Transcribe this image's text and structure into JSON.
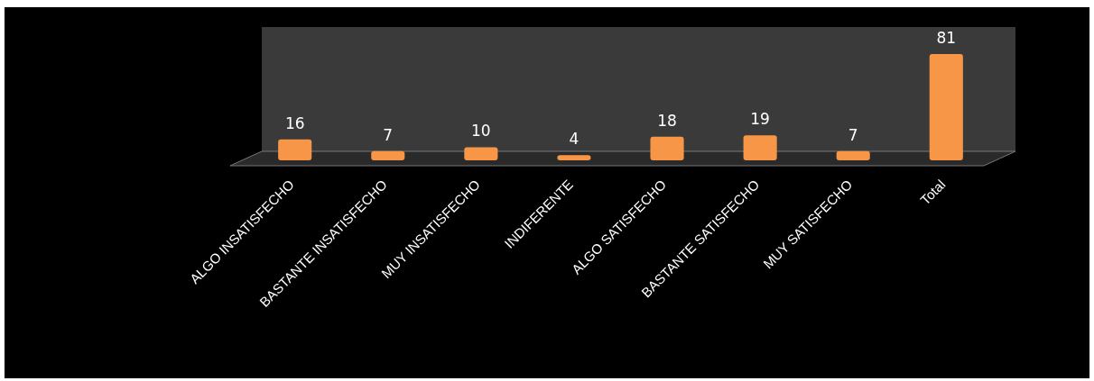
{
  "chart_data": {
    "type": "bar",
    "categories": [
      "ALGO INSATISFECHO",
      "BASTANTE INSATISFECHO",
      "MUY INSATISFECHO",
      "INDIFERENTE",
      "ALGO SATISFECHO",
      "BASTANTE SATISFECHO",
      "MUY SATISFECHO",
      "Total"
    ],
    "values": [
      16,
      7,
      10,
      4,
      18,
      19,
      7,
      81
    ],
    "color": "#f79646",
    "data_labels": true
  }
}
